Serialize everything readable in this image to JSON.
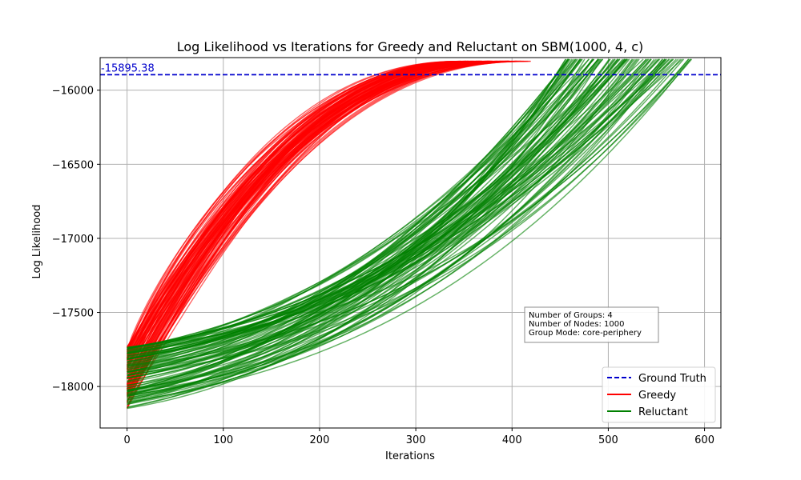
{
  "chart_data": {
    "type": "line",
    "title": "Log Likelihood vs Iterations for Greedy and Reluctant on SBM(1000, 4, c)",
    "xlabel": "Iterations",
    "ylabel": "Log Likelihood",
    "xlim": [
      -28,
      617
    ],
    "ylim": [
      -18280,
      -15780
    ],
    "xticks": [
      0,
      100,
      200,
      300,
      400,
      500,
      600
    ],
    "yticks": [
      -18000,
      -17500,
      -17000,
      -16500,
      -16000
    ],
    "xtick_labels": [
      "0",
      "100",
      "200",
      "300",
      "400",
      "500",
      "600"
    ],
    "ytick_labels": [
      "−18000",
      "−17500",
      "−17000",
      "−16500",
      "−16000"
    ],
    "grid": true,
    "legend_position": "lower-right",
    "ground_truth": {
      "name": "Ground Truth",
      "value": -15895.38,
      "label": "-15895.38",
      "color": "#0000cc"
    },
    "series": [
      {
        "name": "Greedy",
        "color": "#ff0000",
        "representative": {
          "x": [
            0,
            10,
            25,
            50,
            75,
            100,
            150,
            200,
            250,
            300,
            350,
            400,
            420
          ],
          "y": [
            -18000,
            -17700,
            -17450,
            -17150,
            -16950,
            -16780,
            -16500,
            -16250,
            -16080,
            -15940,
            -15850,
            -15810,
            -15805
          ]
        },
        "end_x_range": [
          345,
          420
        ]
      },
      {
        "name": "Reluctant",
        "color": "#008000",
        "representative": {
          "x": [
            0,
            50,
            100,
            150,
            200,
            250,
            300,
            350,
            400,
            450,
            500,
            530
          ],
          "y": [
            -17950,
            -17880,
            -17800,
            -17700,
            -17580,
            -17420,
            -17230,
            -16950,
            -16650,
            -16350,
            -16000,
            -15800
          ]
        },
        "end_x_range": [
          455,
          588
        ]
      }
    ],
    "annotation": {
      "lines": [
        "Number of Groups: 4",
        "Number of Nodes: 1000",
        "Group Mode: core-periphery"
      ]
    }
  }
}
